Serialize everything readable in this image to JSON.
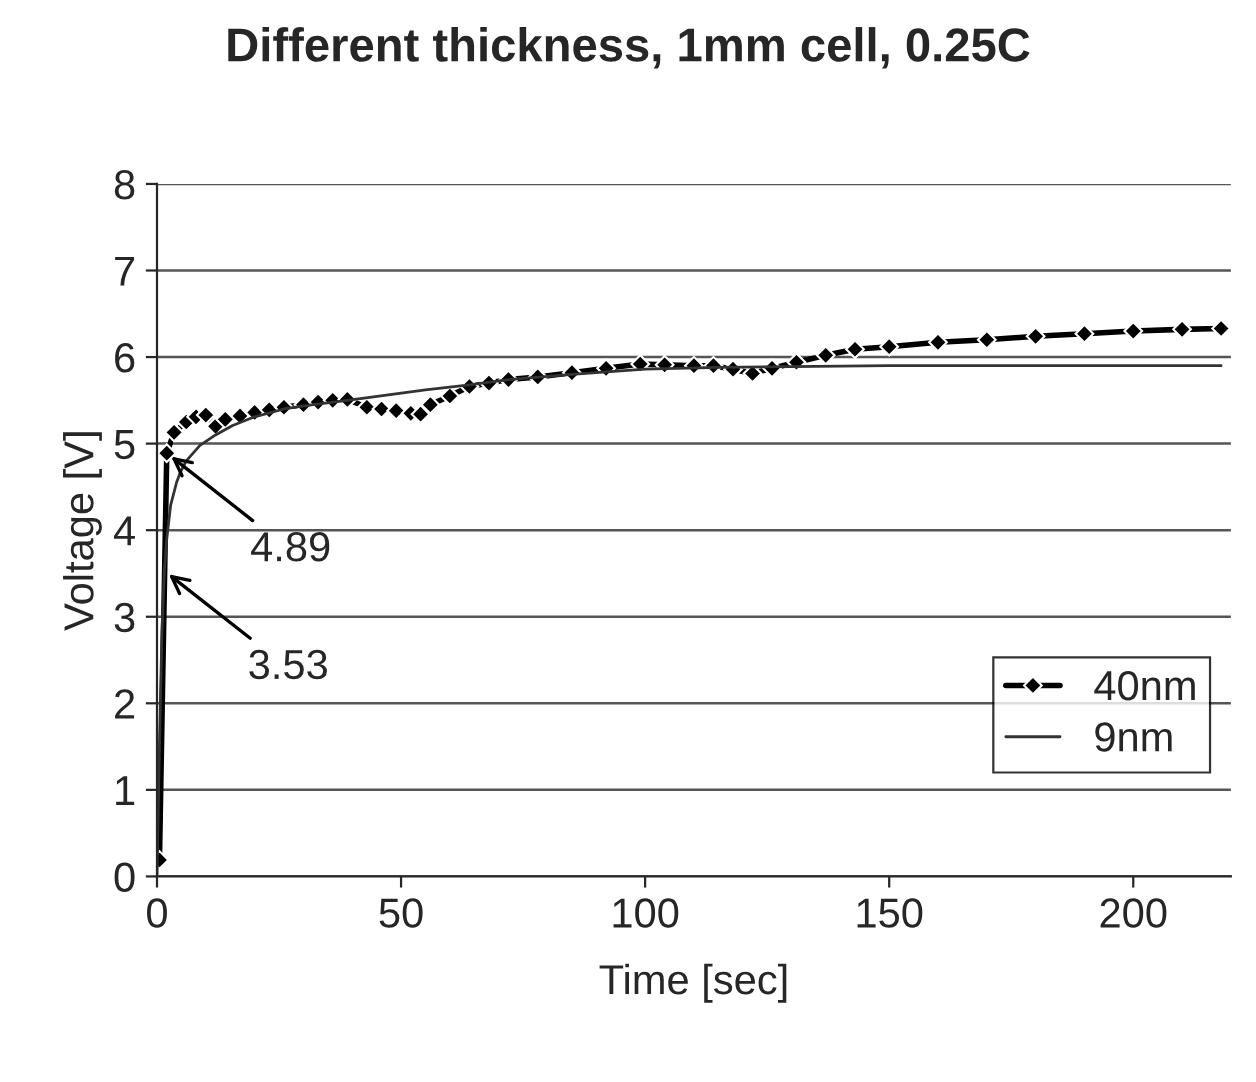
{
  "chart_data": {
    "type": "line",
    "title": "Different thickness, 1mm cell, 0.25C",
    "xlabel": "Time [sec]",
    "ylabel": "Voltage [V]",
    "xlim": [
      0,
      220
    ],
    "xticks": [
      0,
      50,
      100,
      150,
      200
    ],
    "ylim": [
      0,
      8
    ],
    "yticks": [
      0,
      1,
      2,
      3,
      4,
      5,
      6,
      7,
      8
    ],
    "grid": "y",
    "legend": "bottom right",
    "annotations": [
      {
        "text": "4.89",
        "x": 2,
        "y": 4.89
      },
      {
        "text": "3.53",
        "x": 1.5,
        "y": 3.53
      }
    ],
    "series": [
      {
        "name": "40nm",
        "color": "#000000",
        "marker": "diamond",
        "x": [
          0.5,
          2,
          3.5,
          6,
          8,
          10,
          12,
          14,
          17,
          20,
          23,
          26,
          30,
          33,
          36,
          39,
          43,
          46,
          49,
          52,
          54,
          56,
          60,
          64,
          68,
          72,
          78,
          85,
          92,
          99,
          104,
          110,
          114,
          118,
          122,
          126,
          131,
          137,
          143,
          150,
          160,
          170,
          180,
          190,
          200,
          210,
          218
        ],
        "values": [
          0.19,
          4.89,
          5.13,
          5.25,
          5.31,
          5.33,
          5.2,
          5.28,
          5.32,
          5.36,
          5.39,
          5.42,
          5.45,
          5.48,
          5.5,
          5.51,
          5.42,
          5.4,
          5.38,
          5.35,
          5.34,
          5.45,
          5.55,
          5.66,
          5.7,
          5.74,
          5.77,
          5.82,
          5.87,
          5.92,
          5.91,
          5.9,
          5.9,
          5.86,
          5.81,
          5.87,
          5.94,
          6.02,
          6.09,
          6.12,
          6.17,
          6.2,
          6.24,
          6.27,
          6.3,
          6.32,
          6.33
        ]
      },
      {
        "name": "9nm",
        "color": "#333333",
        "marker": "none",
        "x": [
          0,
          0.5,
          1,
          1.5,
          2,
          2.8,
          4,
          4.8,
          6,
          8.8,
          12,
          15.5,
          20,
          26,
          32,
          39,
          47,
          55,
          64,
          72,
          85,
          100,
          115,
          130,
          150,
          175,
          200,
          218
        ],
        "values": [
          0,
          1.5,
          2.8,
          3.53,
          3.9,
          4.29,
          4.55,
          4.67,
          4.8,
          4.98,
          5.1,
          5.21,
          5.31,
          5.4,
          5.45,
          5.5,
          5.56,
          5.62,
          5.68,
          5.74,
          5.8,
          5.86,
          5.88,
          5.89,
          5.9,
          5.9,
          5.9,
          5.9
        ]
      }
    ]
  }
}
